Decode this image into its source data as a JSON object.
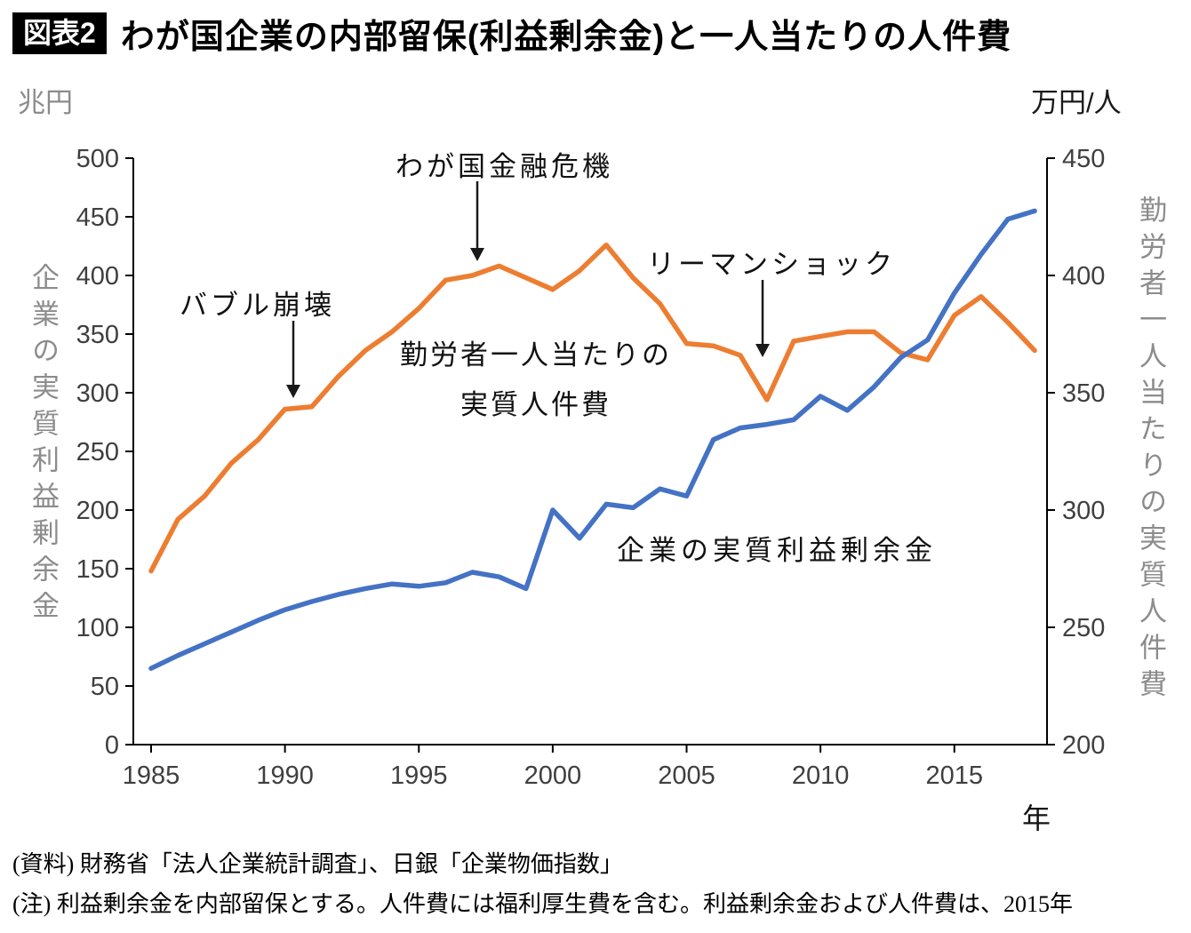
{
  "page": {
    "badge": "図表2",
    "title": "わが国企業の内部留保(利益剰余金)と一人当たりの人件費",
    "notes": [
      "(資料) 財務省「法人企業統計調査」、日銀「企業物価指数」",
      "(注) 利益剰余金を内部留保とする。人件費には福利厚生費を含む。利益剰余金および人件費は、2015年"
    ]
  },
  "chart_data": {
    "type": "line",
    "title": "わが国企業の内部留保(利益剰余金)と一人当たりの人件費",
    "grid": false,
    "legend": "in-plot labels",
    "x": [
      1985,
      1986,
      1987,
      1988,
      1989,
      1990,
      1991,
      1992,
      1993,
      1994,
      1995,
      1996,
      1997,
      1998,
      1999,
      2000,
      2001,
      2002,
      2003,
      2004,
      2005,
      2006,
      2007,
      2008,
      2009,
      2010,
      2011,
      2012,
      2013,
      2014,
      2015,
      2016,
      2017,
      2018
    ],
    "series": [
      {
        "name": "企業の実質利益剰余金",
        "axis": "left",
        "unit": "兆円",
        "color": "#4472C4",
        "values": [
          65,
          76,
          86,
          96,
          106,
          115,
          122,
          128,
          133,
          137,
          135,
          138,
          147,
          143,
          133,
          200,
          176,
          205,
          202,
          218,
          212,
          260,
          270,
          273,
          277,
          297,
          285,
          305,
          330,
          345,
          385,
          418,
          448,
          455
        ]
      },
      {
        "name": "勤労者一人当たりの実質人件費",
        "name_line1": "勤労者一人当たりの",
        "name_line2": "実質人件費",
        "axis": "right",
        "unit": "万円/人",
        "color": "#ED7D31",
        "values": [
          274,
          296,
          306,
          320,
          330,
          343,
          344,
          357,
          368,
          376,
          386,
          398,
          400,
          404,
          399,
          394,
          402,
          413,
          399,
          388,
          371,
          370,
          366,
          347,
          372,
          374,
          376,
          376,
          367,
          364,
          383,
          391,
          380,
          368
        ]
      }
    ],
    "left_axis": {
      "unit": "兆円",
      "label": "企業の実質利益剰余金",
      "min": 0,
      "max": 500,
      "step": 50
    },
    "right_axis": {
      "unit": "万円/人",
      "label": "勤労者一人当たりの実質人件費",
      "min": 200,
      "max": 450,
      "step": 50
    },
    "x_axis": {
      "label": "年",
      "ticks": [
        1985,
        1990,
        1995,
        2000,
        2005,
        2010,
        2015
      ]
    },
    "annotations": [
      {
        "text": "バブル崩壊",
        "year": 1990
      },
      {
        "text": "わが国金融危機",
        "year": 1997
      },
      {
        "text": "リーマンショック",
        "year": 2008
      }
    ]
  }
}
